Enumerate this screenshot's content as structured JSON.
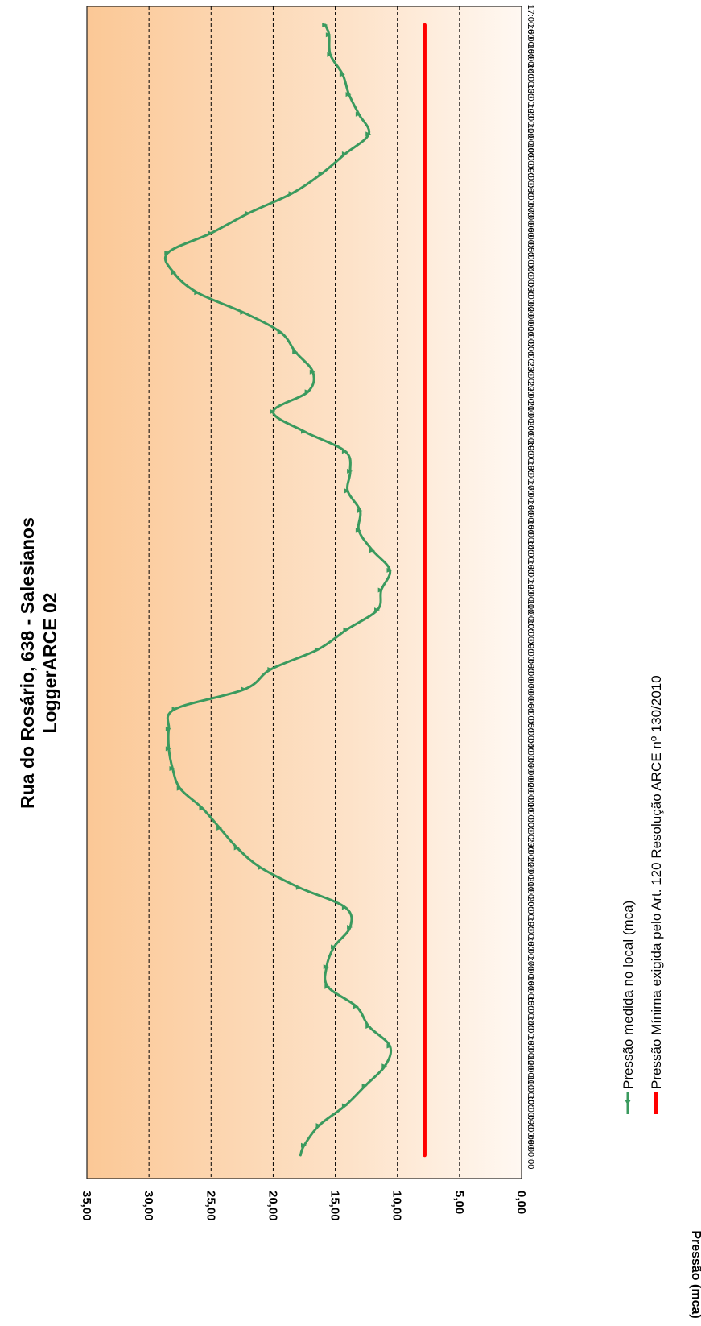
{
  "chart_data": {
    "type": "line",
    "title": "Rua do Rosário, 638 - Salesianos",
    "subtitle": "LoggerARCE 02",
    "xlabel": "",
    "ylabel": "Pressão (mca)",
    "ylim": [
      0,
      35
    ],
    "yticks": [
      "0,00",
      "5,00",
      "10,00",
      "15,00",
      "20,00",
      "25,00",
      "30,00",
      "35,00"
    ],
    "y_gridlines": [
      5,
      10,
      15,
      20,
      25,
      30
    ],
    "grid": "horizontal dashed",
    "rotated": "chart rotated 90 degrees clockwise",
    "legend_position": "bottom",
    "background": "orange gradient (dark at high pressure, fading toward low)",
    "x_categories": [
      "08:00:00",
      "09:00:00",
      "10:00:00",
      "11:00:00",
      "12:00:00",
      "13:00:00",
      "14:00:00",
      "15:00:00",
      "16:00:00",
      "17:00:00",
      "18:00:00",
      "19:00:00",
      "20:00:00",
      "21:00:00",
      "22:00:00",
      "23:00:00",
      "00:00:00",
      "01:00:00",
      "02:00:00",
      "03:00:00",
      "04:00:00",
      "05:00:00",
      "06:00:00",
      "07:00:00",
      "08:00:00",
      "09:00:00",
      "10:00:00",
      "11:00:00",
      "12:00:00",
      "13:00:00",
      "14:00:00",
      "15:00:00",
      "16:00:00",
      "17:00:00",
      "18:00:00",
      "19:00:00",
      "20:00:00",
      "21:00:00",
      "22:00:00",
      "23:00:00",
      "00:00:00",
      "01:00:00",
      "02:00:00",
      "03:00:00",
      "04:00:00",
      "05:00:00",
      "06:00:00",
      "07:00:00",
      "08:00:00",
      "09:00:00",
      "10:00:00",
      "11:00:00",
      "12:00:00",
      "13:00:00",
      "14:00:00",
      "15:00:00",
      "16:00:00",
      "17:00:00"
    ],
    "series": [
      {
        "name": "Pressão medida no local (mca)",
        "color": "#3a9a5e",
        "marker": "triangle",
        "x": [
          0,
          0.5,
          1.5,
          2.5,
          3.5,
          4.5,
          5.5,
          6.5,
          7.5,
          8.5,
          9.5,
          10.5,
          11.5,
          12.5,
          13.5,
          14.5,
          15.5,
          16.5,
          17.5,
          18.5,
          19.5,
          20.5,
          21.5,
          22.5,
          23.5,
          24.5,
          25.5,
          26.5,
          27.5,
          28.5,
          29.5,
          30.5,
          31.5,
          32.5,
          33.5,
          34.5,
          35.5,
          36.5,
          37.5,
          38.5,
          39.5,
          40.5,
          41.5,
          42.5,
          43.5,
          44.5,
          45.5,
          46.5,
          47.5,
          48.5,
          49.5,
          50.5,
          51.5,
          52.5,
          53.5,
          54.5,
          55.5,
          56.5,
          57
        ],
        "values": [
          17.8,
          17.5,
          16.3,
          14.2,
          12.6,
          11.0,
          10.6,
          12.3,
          13.3,
          15.6,
          15.7,
          15.1,
          13.8,
          14.2,
          17.9,
          21.0,
          22.9,
          24.3,
          25.7,
          27.5,
          28.1,
          28.4,
          28.4,
          27.9,
          22.3,
          20.2,
          16.4,
          14.1,
          11.6,
          11.3,
          10.6,
          12.0,
          13.1,
          13.0,
          14.0,
          13.8,
          14.2,
          17.5,
          20.0,
          17.2,
          16.8,
          18.2,
          19.4,
          22.4,
          26.1,
          28.0,
          28.5,
          25.0,
          22.0,
          18.5,
          16.1,
          14.2,
          12.3,
          13.1,
          13.9,
          14.4,
          15.4,
          15.5,
          15.8
        ]
      },
      {
        "name": "Pressão Mínima exigida pelo Art. 120 Resolução ARCE nº 130/2010",
        "color": "#ff0000",
        "marker": "none",
        "x": [
          0,
          57
        ],
        "values": [
          7.8,
          7.8
        ]
      }
    ]
  }
}
